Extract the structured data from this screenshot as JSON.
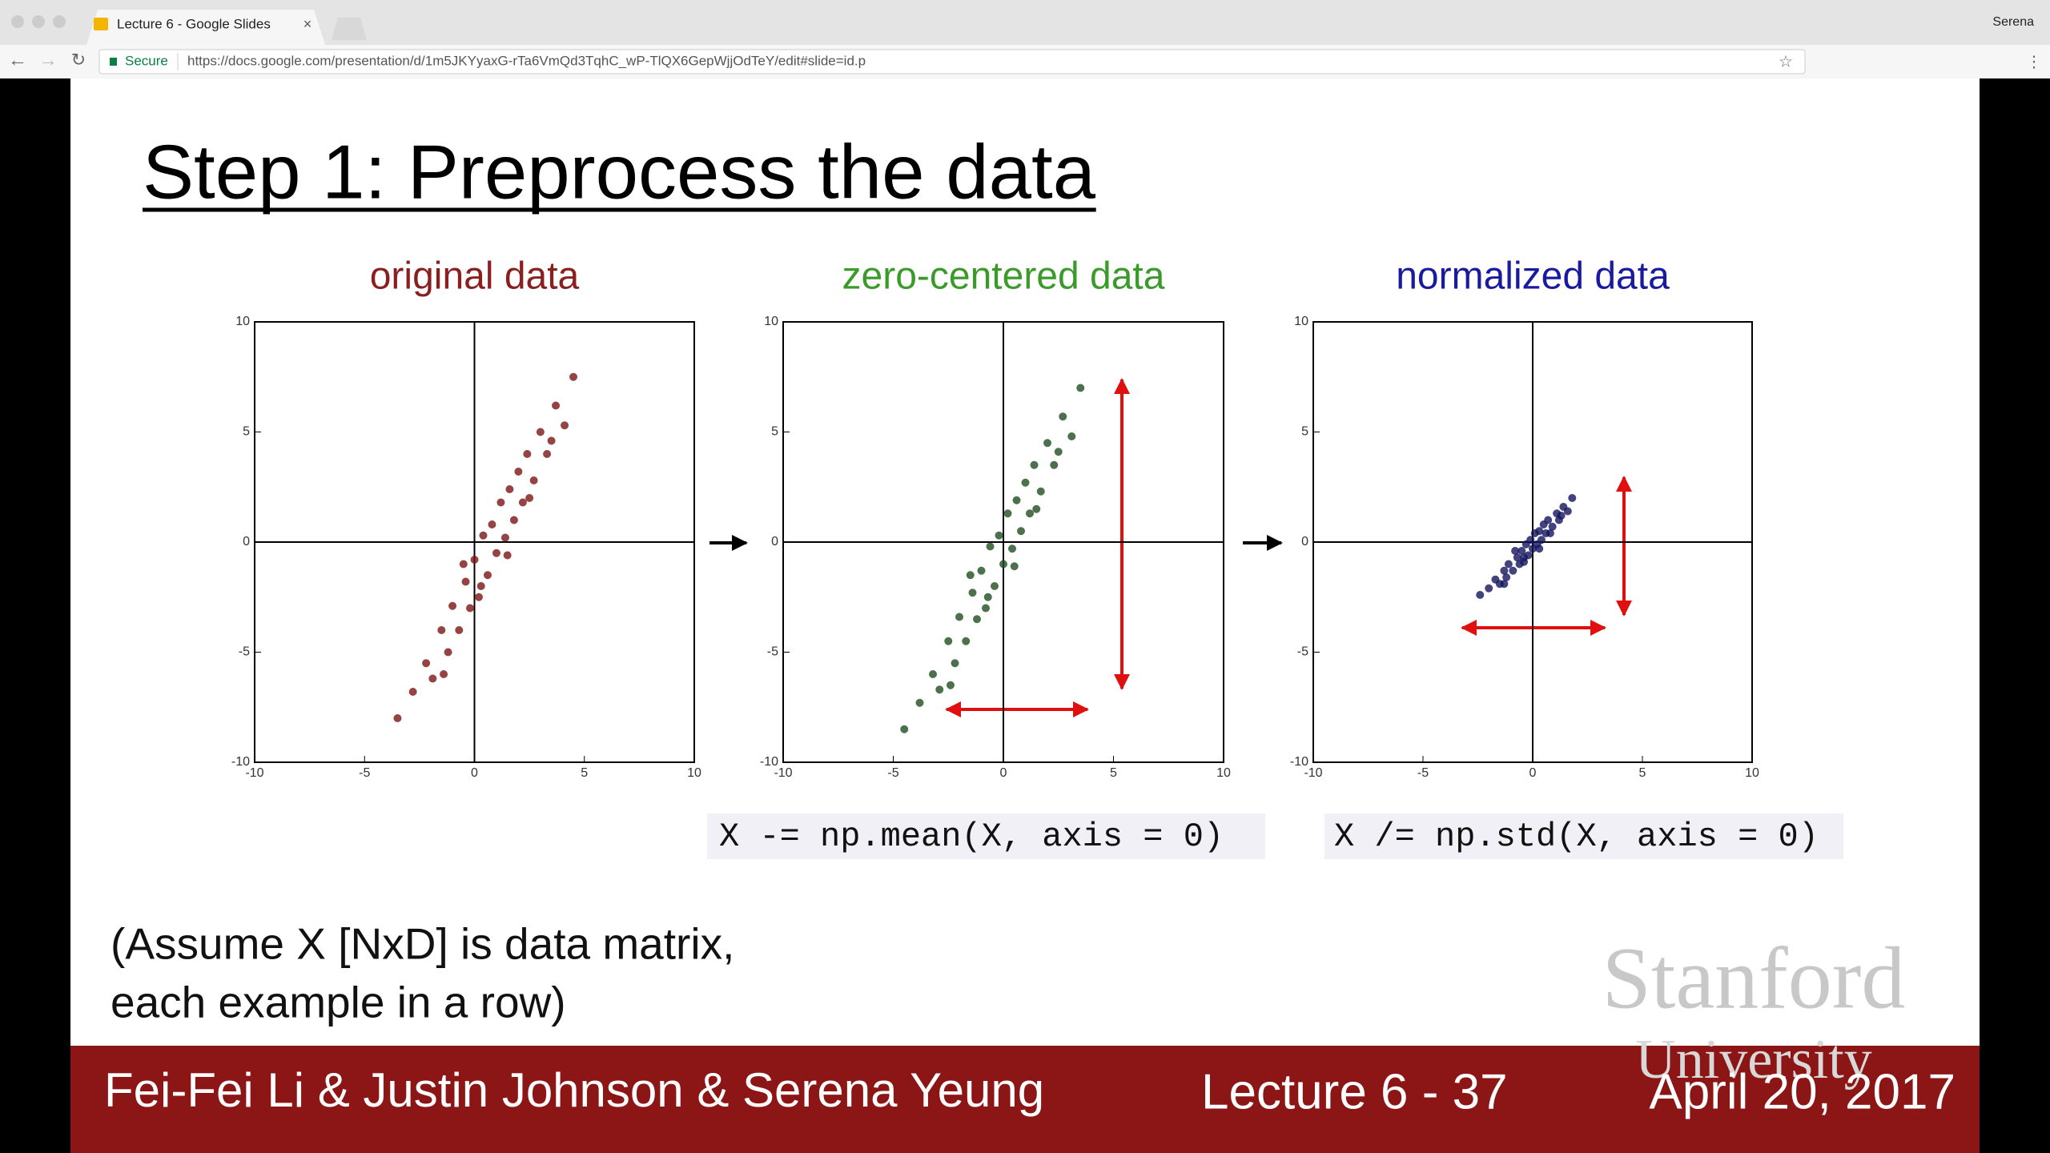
{
  "browser": {
    "tab_title": "Lecture 6 - Google Slides",
    "secure": "Secure",
    "url": "https://docs.google.com/presentation/d/1m5JKYyaxG-rTa6VmQd3TqhC_wP-TlQX6GepWjjOdTeY/edit#slide=id.p",
    "profile": "Serena"
  },
  "slide": {
    "title": "Step 1: Preprocess the data",
    "code": [
      "X -= np.mean(X, axis = 0)",
      "X /= np.std(X, axis = 0)"
    ],
    "note": [
      "(Assume X [NxD] is data matrix,",
      "each example in a row)"
    ],
    "watermark": [
      "Stanford",
      "University"
    ],
    "footer": {
      "authors": "Fei-Fei Li & Justin Johnson & Serena Yeung",
      "lecture": "Lecture 6 - 37",
      "date": "April 20, 2017"
    }
  },
  "chart_data": [
    {
      "type": "scatter",
      "title": "original data",
      "color": "#7a1414",
      "x": [
        -3.5,
        -2.8,
        -2.2,
        -1.9,
        -1.5,
        -1.2,
        -1,
        -0.7,
        -0.4,
        -0.2,
        0,
        0.2,
        0.4,
        0.6,
        0.8,
        1,
        1.2,
        1.4,
        1.6,
        1.8,
        2,
        2.2,
        2.4,
        2.7,
        3,
        3.3,
        3.7,
        4.1,
        4.5,
        -0.5,
        1.5,
        2.5,
        0.3,
        -1.4,
        3.5
      ],
      "y": [
        -8,
        -6.8,
        -5.5,
        -6.2,
        -4,
        -5,
        -2.9,
        -4,
        -1.8,
        -3,
        -0.8,
        -2.5,
        0.3,
        -1.5,
        0.8,
        -0.5,
        1.8,
        0.2,
        2.4,
        1,
        3.2,
        1.8,
        4,
        2.8,
        5,
        4,
        6.2,
        5.3,
        7.5,
        -1,
        -0.6,
        2,
        -2,
        -6,
        4.6
      ],
      "xlim": [
        -10,
        10
      ],
      "ylim": [
        -10,
        10
      ],
      "xticks": [
        -10,
        -5,
        0,
        5,
        10
      ],
      "yticks": [
        -10,
        -5,
        0,
        5,
        10
      ]
    },
    {
      "type": "scatter",
      "title": "zero-centered data",
      "color": "#1f4d1f",
      "x": [
        -4.5,
        -3.8,
        -3.2,
        -2.9,
        -2.5,
        -2.2,
        -2,
        -1.7,
        -1.4,
        -1.2,
        -1,
        -0.8,
        -0.6,
        -0.4,
        -0.2,
        0,
        0.2,
        0.4,
        0.6,
        0.8,
        1,
        1.2,
        1.4,
        1.7,
        2,
        2.3,
        2.7,
        3.1,
        3.5,
        -1.5,
        0.5,
        1.5,
        -0.7,
        -2.4,
        2.5
      ],
      "y": [
        -8.5,
        -7.3,
        -6,
        -6.7,
        -4.5,
        -5.5,
        -3.4,
        -4.5,
        -2.3,
        -3.5,
        -1.3,
        -3,
        -0.2,
        -2,
        0.3,
        -1,
        1.3,
        -0.3,
        1.9,
        0.5,
        2.7,
        1.3,
        3.5,
        2.3,
        4.5,
        3.5,
        5.7,
        4.8,
        7,
        -1.5,
        -1.1,
        1.5,
        -2.5,
        -6.5,
        4.1
      ],
      "xlim": [
        -10,
        10
      ],
      "ylim": [
        -10,
        10
      ],
      "xticks": [
        -10,
        -5,
        0,
        5,
        10
      ],
      "yticks": [
        -10,
        -5,
        0,
        5,
        10
      ]
    },
    {
      "type": "scatter",
      "title": "normalized data",
      "color": "#14145e",
      "x": [
        -2.4,
        -2,
        -1.7,
        -1.5,
        -1.3,
        -1.2,
        -1.1,
        -0.9,
        -0.7,
        -0.6,
        -0.5,
        -0.4,
        -0.3,
        -0.2,
        -0.1,
        0,
        0.1,
        0.2,
        0.3,
        0.4,
        0.5,
        0.6,
        0.7,
        0.9,
        1.1,
        1.2,
        1.4,
        1.6,
        1.8,
        -0.8,
        0.3,
        0.8,
        -0.4,
        -1.3,
        1.3
      ],
      "y": [
        -2.4,
        -2.1,
        -1.7,
        -1.9,
        -1.3,
        -1.6,
        -1,
        -1.3,
        -0.7,
        -1,
        -0.4,
        -0.9,
        -0.1,
        -0.6,
        0.1,
        -0.3,
        0.4,
        -0.1,
        0.5,
        0.1,
        0.8,
        0.4,
        1,
        0.7,
        1.3,
        1,
        1.6,
        1.4,
        2,
        -0.4,
        -0.3,
        0.4,
        -0.7,
        -1.9,
        1.2
      ],
      "xlim": [
        -10,
        10
      ],
      "ylim": [
        -10,
        10
      ],
      "xticks": [
        -10,
        -5,
        0,
        5,
        10
      ],
      "yticks": [
        -10,
        -5,
        0,
        5,
        10
      ]
    }
  ]
}
